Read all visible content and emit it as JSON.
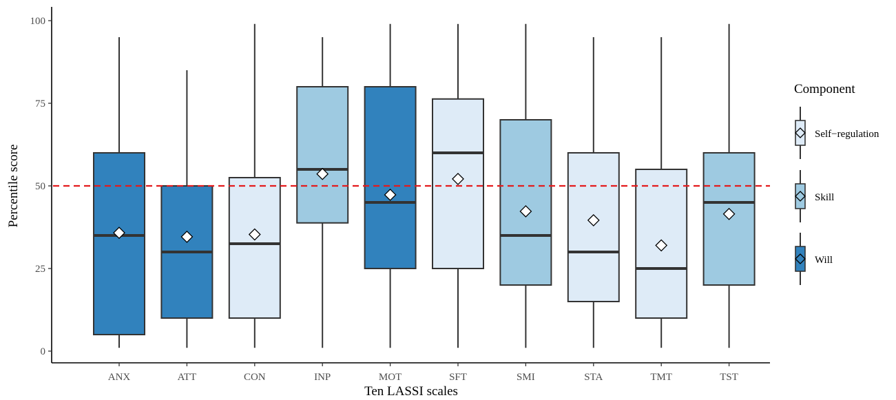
{
  "chart_data": {
    "type": "boxplot",
    "title": "",
    "xlabel": "Ten LASSI scales",
    "ylabel": "Percentile score",
    "ylim": [
      0,
      100
    ],
    "yticks": [
      0,
      25,
      50,
      75,
      100
    ],
    "reference_line": {
      "y": 50,
      "color": "#e41a1c",
      "style": "dashed"
    },
    "grid": false,
    "legend": {
      "title": "Component",
      "placement": "right",
      "entries": [
        {
          "name": "Self−regulation",
          "color": "#deebf7"
        },
        {
          "name": "Skill",
          "color": "#9ecae1"
        },
        {
          "name": "Will",
          "color": "#3182bd"
        }
      ]
    },
    "categories": [
      "ANX",
      "ATT",
      "CON",
      "INP",
      "MOT",
      "SFT",
      "SMI",
      "STA",
      "TMT",
      "TST"
    ],
    "boxes": [
      {
        "category": "ANX",
        "component": "Will",
        "whisker_low": 1,
        "q1": 5,
        "median": 35,
        "q3": 60,
        "whisker_high": 95,
        "mean": 35.8
      },
      {
        "category": "ATT",
        "component": "Will",
        "whisker_low": 1,
        "q1": 10,
        "median": 30,
        "q3": 50,
        "whisker_high": 85,
        "mean": 34.6
      },
      {
        "category": "CON",
        "component": "Self−regulation",
        "whisker_low": 1,
        "q1": 10,
        "median": 32.5,
        "q3": 52.5,
        "whisker_high": 99,
        "mean": 35.3
      },
      {
        "category": "INP",
        "component": "Skill",
        "whisker_low": 1,
        "q1": 38.8,
        "median": 55,
        "q3": 80,
        "whisker_high": 95,
        "mean": 53.6
      },
      {
        "category": "MOT",
        "component": "Will",
        "whisker_low": 1,
        "q1": 25,
        "median": 45,
        "q3": 80,
        "whisker_high": 99,
        "mean": 47.3
      },
      {
        "category": "SFT",
        "component": "Self−regulation",
        "whisker_low": 1,
        "q1": 25,
        "median": 60,
        "q3": 76.3,
        "whisker_high": 99,
        "mean": 52.1
      },
      {
        "category": "SMI",
        "component": "Skill",
        "whisker_low": 1,
        "q1": 20,
        "median": 35,
        "q3": 70,
        "whisker_high": 99,
        "mean": 42.3
      },
      {
        "category": "STA",
        "component": "Self−regulation",
        "whisker_low": 1,
        "q1": 15,
        "median": 30,
        "q3": 60,
        "whisker_high": 95,
        "mean": 39.6
      },
      {
        "category": "TMT",
        "component": "Self−regulation",
        "whisker_low": 1,
        "q1": 10,
        "median": 25,
        "q3": 55,
        "whisker_high": 95,
        "mean": 32
      },
      {
        "category": "TST",
        "component": "Skill",
        "whisker_low": 1,
        "q1": 20,
        "median": 45,
        "q3": 60,
        "whisker_high": 99,
        "mean": 41.5
      }
    ]
  }
}
